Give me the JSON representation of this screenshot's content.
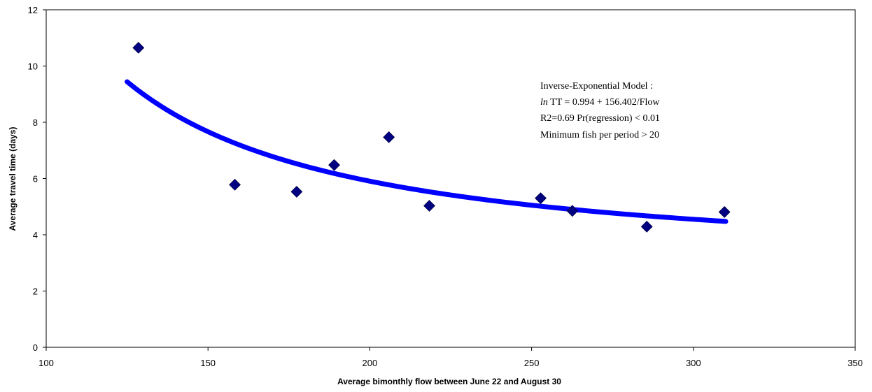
{
  "chart_data": {
    "type": "scatter",
    "xlabel": "Average bimonthly flow between June 22 and August 30",
    "ylabel": "Average travel time (days)",
    "xlim": [
      100,
      350
    ],
    "ylim": [
      0,
      12
    ],
    "xticks": [
      100,
      150,
      200,
      250,
      300,
      350
    ],
    "yticks": [
      0,
      2,
      4,
      6,
      8,
      10,
      12
    ],
    "grid": false,
    "legend": "none",
    "series": [
      {
        "marker": "diamond",
        "color": "#000080",
        "points": [
          {
            "x": 128.5,
            "y": 10.65
          },
          {
            "x": 158.3,
            "y": 5.78
          },
          {
            "x": 177.4,
            "y": 5.53
          },
          {
            "x": 189.0,
            "y": 6.48
          },
          {
            "x": 205.9,
            "y": 7.47
          },
          {
            "x": 218.4,
            "y": 5.03
          },
          {
            "x": 252.8,
            "y": 5.3
          },
          {
            "x": 262.6,
            "y": 4.85
          },
          {
            "x": 285.6,
            "y": 4.29
          },
          {
            "x": 309.6,
            "y": 4.81
          }
        ]
      }
    ],
    "fit": {
      "model": "ln TT = 0.994 + 156.402/Flow",
      "intercept": 0.994,
      "coefficient": 156.402,
      "x_range": [
        125,
        310
      ],
      "color": "#0000ff"
    },
    "annotation": {
      "line1": "Inverse-Exponential Model :",
      "line2_italic": "ln",
      "line2_rest": " TT = 0.994 + 156.402/Flow",
      "line3": "R2=0.69  Pr(regression) < 0.01",
      "line4": "Minimum fish per period > 20"
    }
  }
}
